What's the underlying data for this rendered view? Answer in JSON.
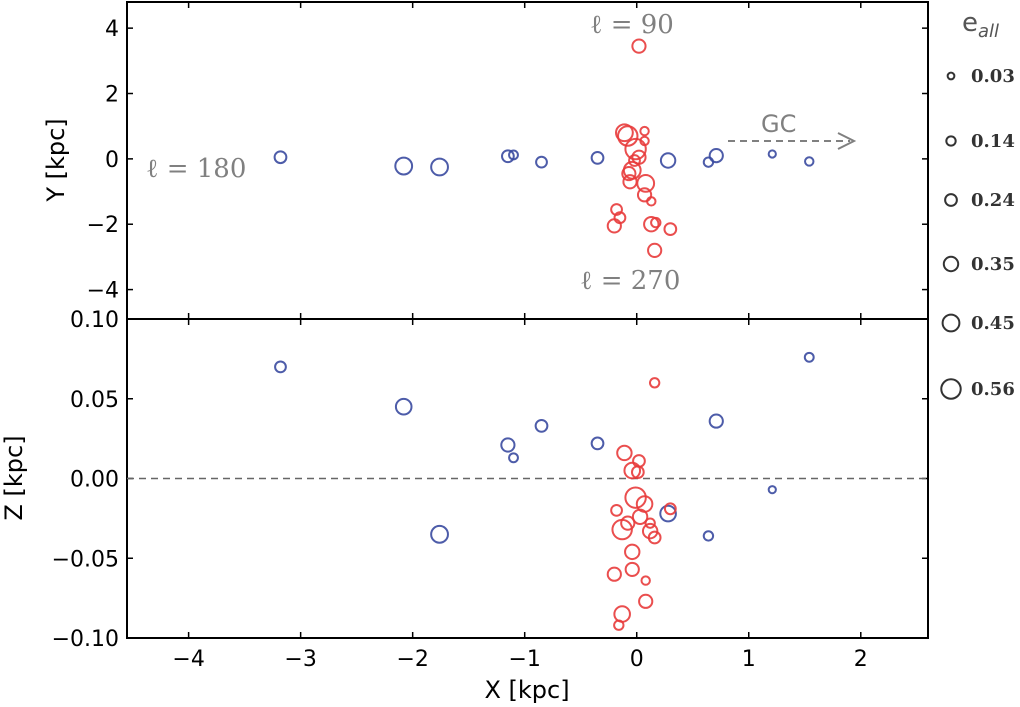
{
  "chart_data": [
    {
      "type": "scatter",
      "panel": "top",
      "xlabel": "",
      "ylabel": "Y [kpc]",
      "xlim": [
        -4.55,
        2.6
      ],
      "ylim": [
        -4.9,
        4.8
      ],
      "yticks": [
        4,
        2,
        0,
        -2,
        -4
      ],
      "ytick_labels": [
        "4",
        "2",
        "0",
        "−2",
        "−4"
      ],
      "annotations": {
        "l90": "ℓ = 90",
        "l180": "ℓ = 180",
        "l270": "ℓ = 270",
        "gc": "GC"
      },
      "series": [
        {
          "name": "blue",
          "color": "#3a4aa0",
          "points": [
            {
              "x": -3.18,
              "y": 0.05,
              "e": 0.24
            },
            {
              "x": -2.08,
              "y": -0.22,
              "e": 0.45
            },
            {
              "x": -1.76,
              "y": -0.25,
              "e": 0.45
            },
            {
              "x": -1.15,
              "y": 0.08,
              "e": 0.24
            },
            {
              "x": -1.1,
              "y": 0.12,
              "e": 0.12
            },
            {
              "x": -0.85,
              "y": -0.1,
              "e": 0.2
            },
            {
              "x": -0.35,
              "y": 0.03,
              "e": 0.24
            },
            {
              "x": 0.28,
              "y": -0.05,
              "e": 0.35
            },
            {
              "x": 0.64,
              "y": -0.1,
              "e": 0.14
            },
            {
              "x": 0.71,
              "y": 0.1,
              "e": 0.3
            },
            {
              "x": 1.21,
              "y": 0.15,
              "e": 0.05
            },
            {
              "x": 1.54,
              "y": -0.08,
              "e": 0.1
            }
          ]
        },
        {
          "name": "red",
          "color": "#e83b3b",
          "points": [
            {
              "x": 0.02,
              "y": 3.45,
              "e": 0.3
            },
            {
              "x": -0.11,
              "y": 0.8,
              "e": 0.45
            },
            {
              "x": -0.08,
              "y": 0.7,
              "e": 0.56
            },
            {
              "x": 0.07,
              "y": 0.85,
              "e": 0.1
            },
            {
              "x": 0.07,
              "y": 0.55,
              "e": 0.1
            },
            {
              "x": -0.01,
              "y": 0.3,
              "e": 0.6
            },
            {
              "x": 0.02,
              "y": 0.05,
              "e": 0.3
            },
            {
              "x": -0.02,
              "y": -0.05,
              "e": 0.2
            },
            {
              "x": -0.04,
              "y": -0.35,
              "e": 0.45
            },
            {
              "x": -0.07,
              "y": -0.45,
              "e": 0.3
            },
            {
              "x": -0.06,
              "y": -0.7,
              "e": 0.3
            },
            {
              "x": 0.08,
              "y": -0.75,
              "e": 0.45
            },
            {
              "x": 0.07,
              "y": -1.1,
              "e": 0.3
            },
            {
              "x": 0.13,
              "y": -1.3,
              "e": 0.1
            },
            {
              "x": -0.18,
              "y": -1.55,
              "e": 0.2
            },
            {
              "x": -0.15,
              "y": -1.8,
              "e": 0.2
            },
            {
              "x": -0.2,
              "y": -2.05,
              "e": 0.3
            },
            {
              "x": 0.13,
              "y": -2.0,
              "e": 0.35
            },
            {
              "x": 0.17,
              "y": -1.95,
              "e": 0.14
            },
            {
              "x": 0.3,
              "y": -2.15,
              "e": 0.24
            },
            {
              "x": 0.16,
              "y": -2.8,
              "e": 0.3
            }
          ]
        }
      ]
    },
    {
      "type": "scatter",
      "panel": "bottom",
      "xlabel": "X [kpc]",
      "ylabel": "Z [kpc]",
      "xlim": [
        -4.55,
        2.6
      ],
      "ylim": [
        -0.1,
        0.1
      ],
      "xticks": [
        -4,
        -3,
        -2,
        -1,
        0,
        1,
        2
      ],
      "xtick_labels": [
        "−4",
        "−3",
        "−2",
        "−1",
        "0",
        "1",
        "2"
      ],
      "yticks": [
        0.1,
        0.05,
        0.0,
        -0.05,
        -0.1
      ],
      "ytick_labels": [
        "0.10",
        "0.05",
        "0.00",
        "−0.05",
        "−0.10"
      ],
      "reference_line_y": 0.0,
      "series": [
        {
          "name": "blue",
          "color": "#3a4aa0",
          "points": [
            {
              "x": -3.18,
              "y": 0.07,
              "e": 0.2
            },
            {
              "x": -2.08,
              "y": 0.045,
              "e": 0.4
            },
            {
              "x": -1.76,
              "y": -0.035,
              "e": 0.45
            },
            {
              "x": -1.15,
              "y": 0.021,
              "e": 0.3
            },
            {
              "x": -1.1,
              "y": 0.013,
              "e": 0.12
            },
            {
              "x": -0.85,
              "y": 0.033,
              "e": 0.24
            },
            {
              "x": -0.35,
              "y": 0.022,
              "e": 0.24
            },
            {
              "x": 0.28,
              "y": -0.022,
              "e": 0.4
            },
            {
              "x": 0.64,
              "y": -0.036,
              "e": 0.14
            },
            {
              "x": 0.71,
              "y": 0.036,
              "e": 0.3
            },
            {
              "x": 1.21,
              "y": -0.007,
              "e": 0.05
            },
            {
              "x": 1.54,
              "y": 0.076,
              "e": 0.12
            }
          ]
        },
        {
          "name": "red",
          "color": "#e83b3b",
          "points": [
            {
              "x": 0.16,
              "y": 0.06,
              "e": 0.14
            },
            {
              "x": -0.11,
              "y": 0.016,
              "e": 0.35
            },
            {
              "x": 0.02,
              "y": 0.011,
              "e": 0.24
            },
            {
              "x": -0.04,
              "y": 0.005,
              "e": 0.4
            },
            {
              "x": 0.01,
              "y": 0.004,
              "e": 0.24
            },
            {
              "x": -0.01,
              "y": -0.012,
              "e": 0.6
            },
            {
              "x": 0.07,
              "y": -0.016,
              "e": 0.4
            },
            {
              "x": -0.18,
              "y": -0.02,
              "e": 0.2
            },
            {
              "x": 0.3,
              "y": -0.019,
              "e": 0.2
            },
            {
              "x": 0.03,
              "y": -0.024,
              "e": 0.35
            },
            {
              "x": -0.08,
              "y": -0.028,
              "e": 0.3
            },
            {
              "x": 0.12,
              "y": -0.028,
              "e": 0.14
            },
            {
              "x": -0.13,
              "y": -0.032,
              "e": 0.56
            },
            {
              "x": 0.12,
              "y": -0.033,
              "e": 0.35
            },
            {
              "x": 0.16,
              "y": -0.037,
              "e": 0.24
            },
            {
              "x": -0.04,
              "y": -0.046,
              "e": 0.35
            },
            {
              "x": -0.04,
              "y": -0.057,
              "e": 0.3
            },
            {
              "x": -0.2,
              "y": -0.06,
              "e": 0.3
            },
            {
              "x": 0.08,
              "y": -0.064,
              "e": 0.1
            },
            {
              "x": 0.08,
              "y": -0.077,
              "e": 0.3
            },
            {
              "x": -0.13,
              "y": -0.085,
              "e": 0.4
            },
            {
              "x": -0.16,
              "y": -0.092,
              "e": 0.14
            }
          ]
        }
      ]
    }
  ],
  "legend": {
    "title": "e",
    "title_sub": "all",
    "entries": [
      {
        "label": "0.03",
        "e": 0.03
      },
      {
        "label": "0.14",
        "e": 0.14
      },
      {
        "label": "0.24",
        "e": 0.24
      },
      {
        "label": "0.35",
        "e": 0.35
      },
      {
        "label": "0.45",
        "e": 0.45
      },
      {
        "label": "0.56",
        "e": 0.56
      }
    ]
  }
}
